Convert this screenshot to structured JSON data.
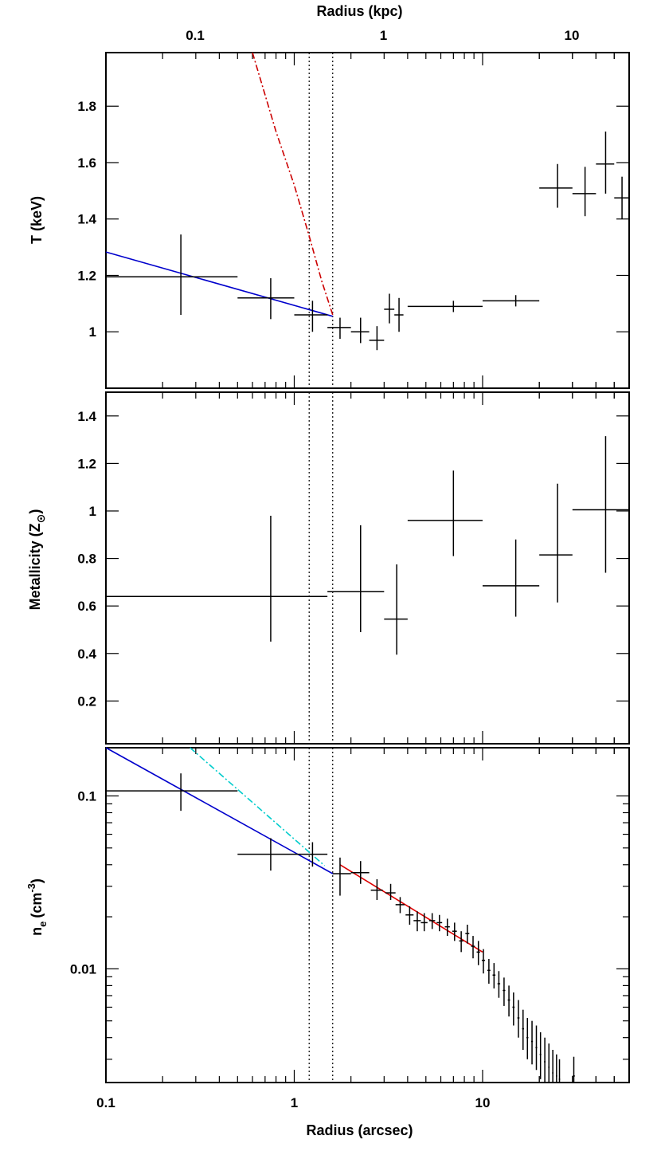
{
  "chart_data": [
    {
      "type": "scatter",
      "panel": "temperature",
      "xscale": "log",
      "xlim": [
        0.1,
        60
      ],
      "ylim": [
        0.8,
        1.99
      ],
      "ylabel": "T (keV)",
      "top_xlabel": "Radius (kpc)",
      "top_ticks": [
        {
          "label": "0.1",
          "arcsec": 0.2977
        },
        {
          "label": "1",
          "arcsec": 2.977
        },
        {
          "label": "10",
          "arcsec": 29.77
        }
      ],
      "yticks": [
        {
          "label": "1",
          "value": 1.0
        },
        {
          "label": "1.2",
          "value": 1.2
        },
        {
          "label": "1.4",
          "value": 1.4
        },
        {
          "label": "1.6",
          "value": 1.6
        },
        {
          "label": "1.8",
          "value": 1.8
        }
      ],
      "vlines": [
        1.2,
        1.6
      ],
      "points": [
        {
          "x": 0.05,
          "xlo": 0.05,
          "xhi": 0.1,
          "y": 1.2,
          "ylo": 1.2,
          "yhi": 1.2
        },
        {
          "x": 0.25,
          "xlo": 0.1,
          "xhi": 0.5,
          "y": 1.195,
          "ylo": 1.06,
          "yhi": 1.345
        },
        {
          "x": 0.75,
          "xlo": 0.5,
          "xhi": 1.0,
          "y": 1.12,
          "ylo": 1.045,
          "yhi": 1.19
        },
        {
          "x": 1.25,
          "xlo": 1.0,
          "xhi": 1.5,
          "y": 1.06,
          "ylo": 1.0,
          "yhi": 1.11
        },
        {
          "x": 1.75,
          "xlo": 1.5,
          "xhi": 2.0,
          "y": 1.015,
          "ylo": 0.975,
          "yhi": 1.05
        },
        {
          "x": 2.25,
          "xlo": 2.0,
          "xhi": 2.5,
          "y": 1.0,
          "ylo": 0.96,
          "yhi": 1.05
        },
        {
          "x": 2.75,
          "xlo": 2.5,
          "xhi": 3.0,
          "y": 0.97,
          "ylo": 0.935,
          "yhi": 1.02
        },
        {
          "x": 3.2,
          "xlo": 3.0,
          "xhi": 3.4,
          "y": 1.08,
          "ylo": 1.03,
          "yhi": 1.135
        },
        {
          "x": 3.6,
          "xlo": 3.4,
          "xhi": 3.8,
          "y": 1.06,
          "ylo": 1.0,
          "yhi": 1.12
        },
        {
          "x": 7.0,
          "xlo": 4.0,
          "xhi": 10.0,
          "y": 1.09,
          "ylo": 1.07,
          "yhi": 1.11
        },
        {
          "x": 15.0,
          "xlo": 10.0,
          "xhi": 20.0,
          "y": 1.11,
          "ylo": 1.09,
          "yhi": 1.13
        },
        {
          "x": 25.0,
          "xlo": 20.0,
          "xhi": 30.0,
          "y": 1.51,
          "ylo": 1.44,
          "yhi": 1.595
        },
        {
          "x": 35.0,
          "xlo": 30.0,
          "xhi": 40.0,
          "y": 1.49,
          "ylo": 1.41,
          "yhi": 1.585
        },
        {
          "x": 45.0,
          "xlo": 40.0,
          "xhi": 50.0,
          "y": 1.595,
          "ylo": 1.49,
          "yhi": 1.71
        },
        {
          "x": 55.0,
          "xlo": 50.0,
          "xhi": 60.0,
          "y": 1.475,
          "ylo": 1.4,
          "yhi": 1.55
        }
      ],
      "lines": [
        {
          "color": "#0000cc",
          "style": "solid",
          "x": [
            0.1,
            1.6
          ],
          "y": [
            1.283,
            1.055
          ]
        },
        {
          "color": "#cc0000",
          "style": "dashdot",
          "x": [
            0.6,
            0.8,
            1.0,
            1.2,
            1.4,
            1.6
          ],
          "y": [
            1.99,
            1.71,
            1.52,
            1.34,
            1.18,
            1.06
          ]
        }
      ]
    },
    {
      "type": "scatter",
      "panel": "metallicity",
      "xscale": "log",
      "xlim": [
        0.1,
        60
      ],
      "ylim": [
        0.02,
        1.5
      ],
      "ylabel": "Metallicity (Z",
      "ylabel_symbol": "⊙",
      "yticks": [
        {
          "label": "0.2",
          "value": 0.2
        },
        {
          "label": "0.4",
          "value": 0.4
        },
        {
          "label": "0.6",
          "value": 0.6
        },
        {
          "label": "0.8",
          "value": 0.8
        },
        {
          "label": "1",
          "value": 1.0
        },
        {
          "label": "1.2",
          "value": 1.2
        },
        {
          "label": "1.4",
          "value": 1.4
        }
      ],
      "vlines": [
        1.2,
        1.6
      ],
      "points": [
        {
          "x": 0.75,
          "xlo": 0.1,
          "xhi": 1.5,
          "y": 0.64,
          "ylo": 0.45,
          "yhi": 0.98
        },
        {
          "x": 2.25,
          "xlo": 1.5,
          "xhi": 3.0,
          "y": 0.66,
          "ylo": 0.49,
          "yhi": 0.94
        },
        {
          "x": 3.5,
          "xlo": 3.0,
          "xhi": 4.0,
          "y": 0.545,
          "ylo": 0.395,
          "yhi": 0.775
        },
        {
          "x": 7.0,
          "xlo": 4.0,
          "xhi": 10.0,
          "y": 0.96,
          "ylo": 0.81,
          "yhi": 1.17
        },
        {
          "x": 15.0,
          "xlo": 10.0,
          "xhi": 20.0,
          "y": 0.685,
          "ylo": 0.555,
          "yhi": 0.88
        },
        {
          "x": 25.0,
          "xlo": 20.0,
          "xhi": 30.0,
          "y": 0.815,
          "ylo": 0.615,
          "yhi": 1.115
        },
        {
          "x": 45.0,
          "xlo": 30.0,
          "xhi": 60.0,
          "y": 1.005,
          "ylo": 0.74,
          "yhi": 1.315
        }
      ]
    },
    {
      "type": "scatter",
      "panel": "density",
      "xscale": "log",
      "yscale": "log",
      "xlim": [
        0.1,
        60
      ],
      "ylim": [
        0.0022,
        0.19
      ],
      "ylabel": "n",
      "ylabel_sub": "e",
      "ylabel_unit": "(cm",
      "ylabel_sup": "-3",
      "xlabel": "Radius (arcsec)",
      "xticks": [
        {
          "label": "0.1",
          "value": 0.1
        },
        {
          "label": "1",
          "value": 1.0
        },
        {
          "label": "10",
          "value": 10.0
        }
      ],
      "yticks": [
        {
          "label": "0.01",
          "value": 0.01
        },
        {
          "label": "0.1",
          "value": 0.1
        }
      ],
      "vlines": [
        1.2,
        1.6
      ],
      "points": [
        {
          "x": 0.25,
          "xlo": 0.1,
          "xhi": 0.5,
          "y": 0.107,
          "ylo": 0.082,
          "yhi": 0.135
        },
        {
          "x": 0.75,
          "xlo": 0.5,
          "xhi": 1.0,
          "y": 0.046,
          "ylo": 0.037,
          "yhi": 0.057
        },
        {
          "x": 1.25,
          "xlo": 1.0,
          "xhi": 1.5,
          "y": 0.046,
          "ylo": 0.039,
          "yhi": 0.054
        },
        {
          "x": 1.75,
          "xlo": 1.6,
          "xhi": 2.0,
          "y": 0.0355,
          "ylo": 0.0265,
          "yhi": 0.044
        },
        {
          "x": 2.25,
          "xlo": 2.0,
          "xhi": 2.5,
          "y": 0.036,
          "ylo": 0.031,
          "yhi": 0.042
        },
        {
          "x": 2.75,
          "xlo": 2.55,
          "xhi": 2.95,
          "y": 0.0285,
          "ylo": 0.025,
          "yhi": 0.033
        },
        {
          "x": 3.25,
          "xlo": 3.05,
          "xhi": 3.45,
          "y": 0.0275,
          "ylo": 0.025,
          "yhi": 0.031
        },
        {
          "x": 3.65,
          "xlo": 3.45,
          "xhi": 3.85,
          "y": 0.0235,
          "ylo": 0.021,
          "yhi": 0.026
        },
        {
          "x": 4.1,
          "xlo": 3.9,
          "xhi": 4.3,
          "y": 0.0205,
          "ylo": 0.018,
          "yhi": 0.023
        },
        {
          "x": 4.5,
          "xlo": 4.3,
          "xhi": 4.7,
          "y": 0.019,
          "ylo": 0.0165,
          "yhi": 0.0215
        },
        {
          "x": 4.9,
          "xlo": 4.7,
          "xhi": 5.1,
          "y": 0.0185,
          "ylo": 0.0165,
          "yhi": 0.021
        },
        {
          "x": 5.4,
          "xlo": 5.2,
          "xhi": 5.6,
          "y": 0.019,
          "ylo": 0.017,
          "yhi": 0.021
        },
        {
          "x": 5.9,
          "xlo": 5.7,
          "xhi": 6.1,
          "y": 0.0185,
          "ylo": 0.0165,
          "yhi": 0.0205
        },
        {
          "x": 6.5,
          "xlo": 6.3,
          "xhi": 6.7,
          "y": 0.0175,
          "ylo": 0.0155,
          "yhi": 0.0195
        },
        {
          "x": 7.1,
          "xlo": 6.9,
          "xhi": 7.3,
          "y": 0.0165,
          "ylo": 0.0145,
          "yhi": 0.0185
        },
        {
          "x": 7.7,
          "xlo": 7.5,
          "xhi": 7.9,
          "y": 0.0145,
          "ylo": 0.0125,
          "yhi": 0.0165
        },
        {
          "x": 8.3,
          "xlo": 8.1,
          "xhi": 8.5,
          "y": 0.016,
          "ylo": 0.014,
          "yhi": 0.018
        },
        {
          "x": 8.9,
          "xlo": 8.7,
          "xhi": 9.1,
          "y": 0.0135,
          "ylo": 0.0115,
          "yhi": 0.0155
        },
        {
          "x": 9.5,
          "xlo": 9.3,
          "xhi": 9.7,
          "y": 0.0125,
          "ylo": 0.0105,
          "yhi": 0.0145
        },
        {
          "x": 10.1,
          "xlo": 9.9,
          "xhi": 10.3,
          "y": 0.0112,
          "ylo": 0.0094,
          "yhi": 0.013
        },
        {
          "x": 10.8,
          "xlo": 10.6,
          "xhi": 11.0,
          "y": 0.0098,
          "ylo": 0.0082,
          "yhi": 0.0114
        },
        {
          "x": 11.5,
          "xlo": 11.3,
          "xhi": 11.7,
          "y": 0.0092,
          "ylo": 0.0077,
          "yhi": 0.0108
        },
        {
          "x": 12.2,
          "xlo": 12.0,
          "xhi": 12.4,
          "y": 0.0082,
          "ylo": 0.0068,
          "yhi": 0.0097
        },
        {
          "x": 13.0,
          "xlo": 12.8,
          "xhi": 13.2,
          "y": 0.0075,
          "ylo": 0.0061,
          "yhi": 0.0089
        },
        {
          "x": 13.8,
          "xlo": 13.6,
          "xhi": 14.0,
          "y": 0.0066,
          "ylo": 0.0053,
          "yhi": 0.008
        },
        {
          "x": 14.6,
          "xlo": 14.4,
          "xhi": 14.8,
          "y": 0.006,
          "ylo": 0.0047,
          "yhi": 0.0073
        },
        {
          "x": 15.5,
          "xlo": 15.3,
          "xhi": 15.7,
          "y": 0.0052,
          "ylo": 0.004,
          "yhi": 0.0066
        },
        {
          "x": 16.4,
          "xlo": 16.2,
          "xhi": 16.6,
          "y": 0.0045,
          "ylo": 0.0034,
          "yhi": 0.0058
        },
        {
          "x": 17.3,
          "xlo": 17.1,
          "xhi": 17.5,
          "y": 0.004,
          "ylo": 0.003,
          "yhi": 0.0052
        },
        {
          "x": 18.3,
          "xlo": 18.1,
          "xhi": 18.5,
          "y": 0.0038,
          "ylo": 0.0028,
          "yhi": 0.005
        },
        {
          "x": 19.3,
          "xlo": 19.1,
          "xhi": 19.5,
          "y": 0.0035,
          "ylo": 0.0026,
          "yhi": 0.0047
        },
        {
          "x": 20.3,
          "xlo": 20.1,
          "xhi": 20.5,
          "y": 0.0032,
          "ylo": 0.0023,
          "yhi": 0.0043
        },
        {
          "x": 21.4,
          "xlo": 21.2,
          "xhi": 21.6,
          "y": 0.0029,
          "ylo": 0.0022,
          "yhi": 0.004
        },
        {
          "x": 22.5,
          "xlo": 22.3,
          "xhi": 22.7,
          "y": 0.0027,
          "ylo": 0.0022,
          "yhi": 0.0037
        },
        {
          "x": 23.6,
          "xlo": 23.4,
          "xhi": 23.8,
          "y": 0.0025,
          "ylo": 0.0022,
          "yhi": 0.0034
        },
        {
          "x": 24.7,
          "xlo": 24.5,
          "xhi": 24.9,
          "y": 0.0024,
          "ylo": 0.0022,
          "yhi": 0.0032
        },
        {
          "x": 25.6,
          "xlo": 25.4,
          "xhi": 25.8,
          "y": 0.0023,
          "ylo": 0.0022,
          "yhi": 0.003
        },
        {
          "x": 30.5,
          "xlo": 30.1,
          "xhi": 30.9,
          "y": 0.0024,
          "ylo": 0.0022,
          "yhi": 0.0031
        }
      ],
      "lines": [
        {
          "color": "#0000cc",
          "style": "solid",
          "x": [
            0.1,
            1.6
          ],
          "y": [
            0.19,
            0.0355
          ]
        },
        {
          "color": "#00cccc",
          "style": "dashdot",
          "x": [
            0.28,
            1.45
          ],
          "y": [
            0.19,
            0.0395
          ]
        },
        {
          "color": "#dd0000",
          "style": "solid",
          "x": [
            1.75,
            10.0
          ],
          "y": [
            0.04,
            0.0125
          ]
        }
      ]
    }
  ]
}
